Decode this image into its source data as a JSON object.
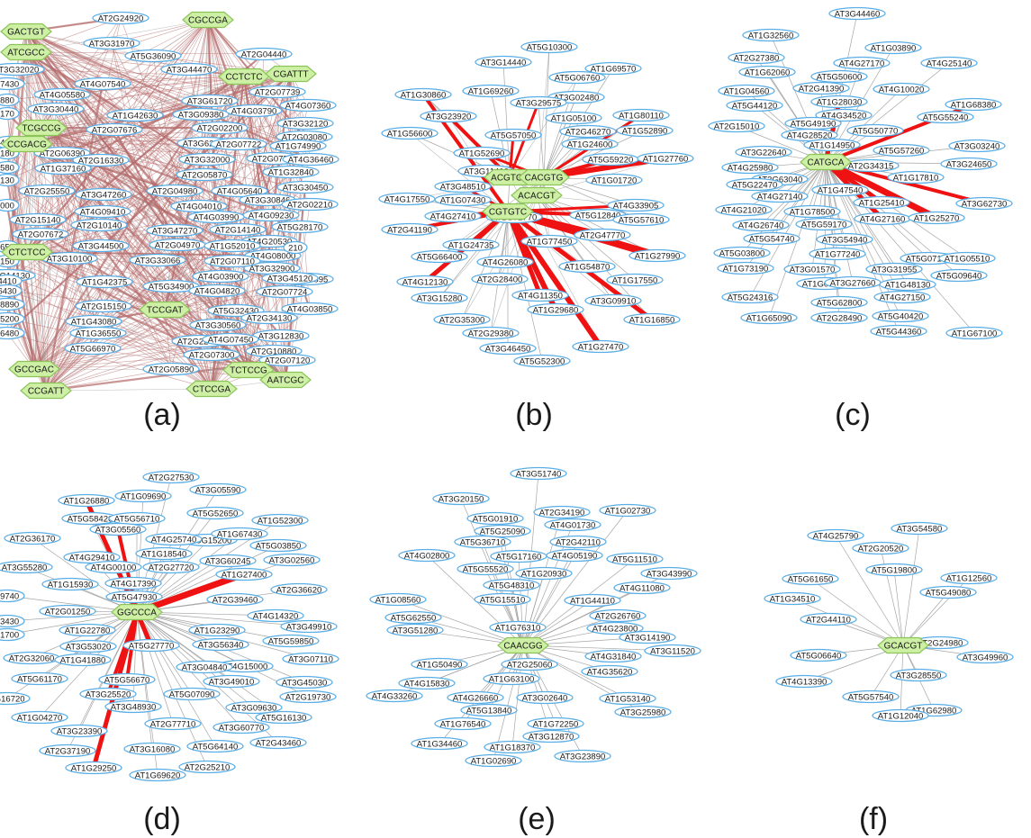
{
  "colors": {
    "gene_fill": "#ffffff",
    "gene_stroke": "#5aaee6",
    "motif_fill": "#cdf0a4",
    "motif_stroke": "#8cc45a",
    "edge_thin": "#9c9c9c",
    "edge_dense": "#b46a6a",
    "edge_strong": "#ee1212"
  },
  "panels": [
    {
      "id": "a",
      "caption": "(a)",
      "motifs": [
        "GACTGT",
        "CGCCGA",
        "ATCGCC",
        "CCTCTC",
        "CGATTT",
        "TCGCCG",
        "CCGACG",
        "CTCTCC",
        "TCCGAT",
        "GCCGAC",
        "CCGATT",
        "CTCCGA",
        "TCTCCG",
        "AATCGC"
      ],
      "genes": [
        "AT2G24920",
        "AT3G31970",
        "AT2G04440",
        "AT3G32020",
        "AT5G36090",
        "AT3G44470",
        "07430",
        "AT4G07540",
        "880",
        "AT4G05580",
        "AT3G61720",
        "AT2G07739",
        "170",
        "AT3G30440",
        "AT1G42630",
        "AT3G09380",
        "AT4G03790",
        "AT4G07360",
        "AT2G02200",
        "AT3G32120",
        "AT2G07676",
        "AT2G03080",
        "430",
        "AT3G62520",
        "AT2G07722",
        "AT1G74990",
        "AT2G06390",
        "180",
        "AT2G07721",
        "AT4G36460",
        "580",
        "AT2G16330",
        "AT3G32000",
        "AT1G32840",
        "AT1G37160",
        "AT2G05870",
        "130",
        "AT2G25550",
        "AT3G47260",
        "AT2G04980",
        "AT4G05640",
        "AT3G30450",
        "AT3G30846",
        "AT2G02210",
        "000",
        "AT4G09410",
        "AT4G04010",
        "AT4G09230",
        "AT2G15140",
        "AT2G10140",
        "AT4G03990",
        "AT5G28170",
        "AT2G07672",
        "AT3G47270",
        "AT2G14140",
        "AT4G20530",
        "650",
        "AT3G44500",
        "AT2G04970",
        "AT1G52010",
        "AT4G08000",
        "150",
        "AT3G10100",
        "AT3G32900",
        "210",
        "AT2G14130",
        "AT3G33066",
        "AT2G07110",
        "AT5G34895",
        "4410",
        "AT1G42375",
        "AT4G03900",
        "AT3G45120",
        "6430",
        "AT5G34900",
        "AT4G04820",
        "AT2G07724",
        "08890",
        "AT2G15150",
        "AT4G03850",
        "15200",
        "AT1G43080",
        "AT5G32430",
        "AT2G34130",
        "06480",
        "AT1G36550",
        "AT3G30560",
        "AT3G12830",
        "AT5G66970",
        "AT2G22440",
        "AT4G07450",
        "AT2G10880",
        "AT2G07300",
        "AT2G05890",
        "AT2G07120"
      ]
    },
    {
      "id": "b",
      "caption": "(b)",
      "motifs": [
        "ACGTGT",
        "CACGTG",
        "ACACGT",
        "CGTGTC"
      ],
      "genes": [
        "AT5G10300",
        "AT3G14440",
        "AT5G06760",
        "AT1G69570",
        "AT1G30860",
        "AT1G69260",
        "AT3G02480",
        "AT3G29575",
        "AT3G23920",
        "AT1G05100",
        "AT1G80110",
        "AT5G57050",
        "AT2G46270",
        "AT1G52890",
        "AT1G56600",
        "AT1G24600",
        "AT1G52690",
        "AT5G59220",
        "AT1G27760",
        "AT3G11410",
        "AT3G48510",
        "AT1G01720",
        "AT4G17550",
        "AT1G07430",
        "AT4G33905",
        "AT4G27410",
        "AT1G72770",
        "AT5G12840",
        "AT5G57610",
        "AT2G41190",
        "AT2G47770",
        "AT1G24735",
        "AT1G77450",
        "AT1G27990",
        "AT5G66400",
        "AT4G26080",
        "AT1G54870",
        "AT4G12130",
        "AT2G28400",
        "AT1G17550",
        "AT3G15280",
        "AT4G11350",
        "AT3G09910",
        "AT1G29680",
        "AT2G35300",
        "AT1G16850",
        "AT2G29380",
        "AT3G46450",
        "AT1G27470",
        "AT5G52300"
      ]
    },
    {
      "id": "c",
      "caption": "(c)",
      "motifs": [
        "CATGCA"
      ],
      "genes": [
        "AT3G44460",
        "AT1G32560",
        "AT1G03890",
        "AT2G27380",
        "AT4G27170",
        "AT4G25140",
        "AT1G62060",
        "AT5G50600",
        "AT2G41390",
        "AT4G10020",
        "AT1G04560",
        "AT1G28030",
        "AT1G68380",
        "AT5G44120",
        "AT4G34520",
        "AT5G55240",
        "AT5G49190",
        "AT5G50770",
        "AT2G15010",
        "AT4G28520",
        "AT1G14950",
        "AT3G22640",
        "AT5G57260",
        "AT3G03240",
        "AT4G25980",
        "AT2G34315",
        "AT3G24650",
        "AT3G63040",
        "AT1G17810",
        "AT5G22470",
        "AT1G47540",
        "AT4G27140",
        "AT1G25410",
        "AT3G62730",
        "AT4G21020",
        "AT1G78500",
        "AT4G27160",
        "AT1G25270",
        "AT4G26740",
        "AT5G59170",
        "AT5G54740",
        "AT3G54940",
        "AT5G07190",
        "AT5G03800",
        "AT1G77240",
        "AT1G05510",
        "AT1G73190",
        "AT3G01570",
        "AT3G31955",
        "AT5G09640",
        "AT1G03880",
        "AT3G27660",
        "AT1G48130",
        "AT5G24316",
        "AT5G62800",
        "AT4G27150",
        "AT1G65090",
        "AT2G28490",
        "AT5G40420",
        "AT5G44360",
        "AT1G67100"
      ]
    },
    {
      "id": "d",
      "caption": "(d)",
      "motifs": [
        "GGCCCA"
      ],
      "genes": [
        "AT2G27530",
        "AT3G05590",
        "AT1G26880",
        "AT1G09690",
        "AT5G52650",
        "AT5G58420",
        "AT5G56710",
        "AT5G15200",
        "AT1G52300",
        "AT3G05560",
        "AT1G67430",
        "AT2G36170",
        "AT4G25740",
        "AT5G03850",
        "AT1G18540",
        "AT3G60245",
        "AT3G02560",
        "AT4G29410",
        "AT3G55280",
        "AT4G00100",
        "AT2G27720",
        "AT1G27400",
        "AT1G15930",
        "AT4G17390",
        "AT2G36620",
        "39740",
        "AT5G47930",
        "AT2G39460",
        "AT2G01250",
        "AT4G14320",
        "53430",
        "AT1G22780",
        "AT1G23290",
        "AT3G49910",
        "31700",
        "AT3G53020",
        "AT5G27770",
        "AT3G56340",
        "AT5G59850",
        "AT2G32060",
        "AT1G41880",
        "AT4G15000",
        "AT3G07110",
        "AT5G61170",
        "AT5G56670",
        "AT3G04840",
        "AT3G49010",
        "AT3G45030",
        "4G16720",
        "AT3G25520",
        "AT5G07090",
        "AT2G19730",
        "AT1G04270",
        "AT3G48930",
        "AT3G09630",
        "AT5G16130",
        "AT3G23390",
        "AT2G77710",
        "AT3G60770",
        "AT2G37190",
        "AT3G16080",
        "AT5G64140",
        "AT2G43460",
        "AT1G29250",
        "AT1G69620",
        "AT2G25210"
      ]
    },
    {
      "id": "e",
      "caption": "(e)",
      "motifs": [
        "CAACGG"
      ],
      "genes": [
        "AT3G51740",
        "AT3G20150",
        "AT2G34190",
        "AT1G02730",
        "AT5G01910",
        "AT4G01730",
        "AT5G25090",
        "AT2G42110",
        "AT5G36710",
        "AT4G02800",
        "AT4G05190",
        "AT5G11510",
        "AT5G55520",
        "AT5G17160",
        "AT3G43990",
        "AT5G48310",
        "AT1G20930",
        "AT4G11080",
        "AT5G15510",
        "AT1G44110",
        "AT1G08560",
        "AT2G26760",
        "AT5G62550",
        "AT1G76310",
        "AT4G23800",
        "AT3G51280",
        "AT3G14190",
        "AT3G11520",
        "AT4G31840",
        "AT1G50490",
        "AT2G25060",
        "AT4G35620",
        "AT4G15830",
        "AT1G63100",
        "AT4G33260",
        "AT4G26660",
        "AT3G02640",
        "AT1G53140",
        "AT5G13840",
        "AT3G25980",
        "AT1G76540",
        "AT1G72250",
        "AT3G12870",
        "AT1G34460",
        "AT1G18370",
        "AT3G23890",
        "AT1G02690"
      ]
    },
    {
      "id": "f",
      "caption": "(f)",
      "motifs": [
        "GCACGT"
      ],
      "genes": [
        "AT4G25790",
        "AT3G54580",
        "AT2G20520",
        "AT5G19800",
        "AT5G61650",
        "AT1G12560",
        "AT5G49080",
        "AT1G34510",
        "AT2G44110",
        "AT2G24980",
        "AT5G06640",
        "AT3G49960",
        "AT4G13390",
        "AT3G28550",
        "AT5G57540",
        "AT1G62980",
        "AT1G12040"
      ]
    }
  ]
}
